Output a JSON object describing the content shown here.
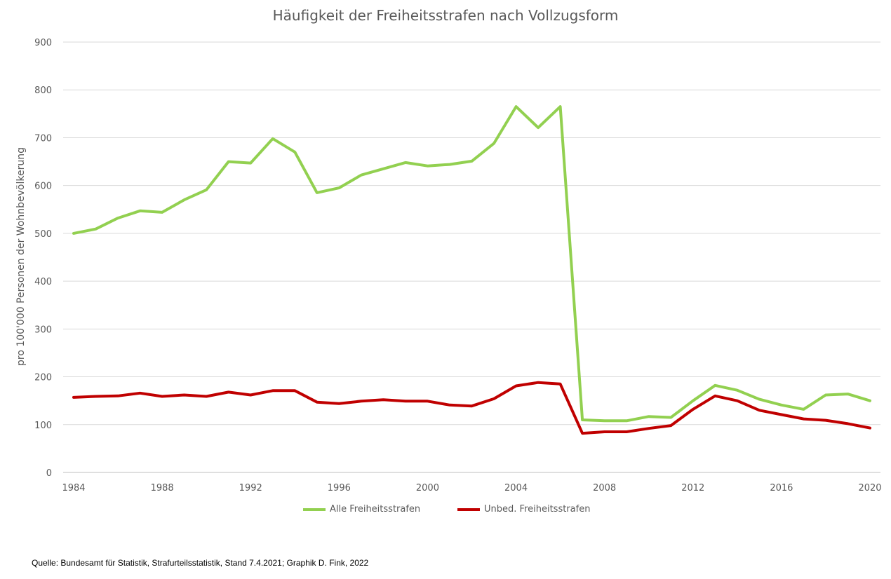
{
  "title": "Häufigkeit der Freiheitsstrafen nach Vollzugsform",
  "source": "Quelle: Bundesamt für Statistik, Strafurteilsstatistik, Stand 7.4.2021; Graphik D. Fink, 2022",
  "chart_data": {
    "type": "line",
    "title": "Häufigkeit der Freiheitsstrafen nach Vollzugsform",
    "xlabel": "",
    "ylabel": "pro 100'000 Personen der Wohnbevölkerung",
    "ylim": [
      0,
      900
    ],
    "yticks": [
      "0",
      "100",
      "200",
      "300",
      "400",
      "500",
      "600",
      "700",
      "800",
      "900"
    ],
    "xticks": [
      "1984",
      "1988",
      "1992",
      "1996",
      "2000",
      "2004",
      "2008",
      "2012",
      "2016",
      "2020"
    ],
    "grid": true,
    "legend_position": "bottom",
    "x": [
      1984,
      1985,
      1986,
      1987,
      1988,
      1989,
      1990,
      1991,
      1992,
      1993,
      1994,
      1995,
      1996,
      1997,
      1998,
      1999,
      2000,
      2001,
      2002,
      2003,
      2004,
      2005,
      2006,
      2007,
      2008,
      2009,
      2010,
      2011,
      2012,
      2013,
      2014,
      2015,
      2016,
      2017,
      2018,
      2019,
      2020
    ],
    "series": [
      {
        "name": "Alle Freiheitsstrafen",
        "color": "#92D050",
        "values": [
          500,
          509,
          532,
          547,
          544,
          570,
          591,
          650,
          647,
          698,
          670,
          585,
          595,
          622,
          635,
          648,
          641,
          644,
          651,
          688,
          765,
          721,
          765,
          110,
          108,
          108,
          117,
          115,
          150,
          182,
          172,
          153,
          141,
          132,
          162,
          164,
          150
        ]
      },
      {
        "name": "Unbed. Freiheitsstrafen",
        "color": "#C00000",
        "values": [
          157,
          159,
          160,
          166,
          159,
          162,
          159,
          168,
          162,
          171,
          171,
          147,
          144,
          149,
          152,
          149,
          149,
          141,
          139,
          154,
          181,
          188,
          185,
          82,
          85,
          85,
          92,
          98,
          132,
          160,
          150,
          130,
          121,
          112,
          109,
          102,
          93
        ]
      }
    ]
  }
}
